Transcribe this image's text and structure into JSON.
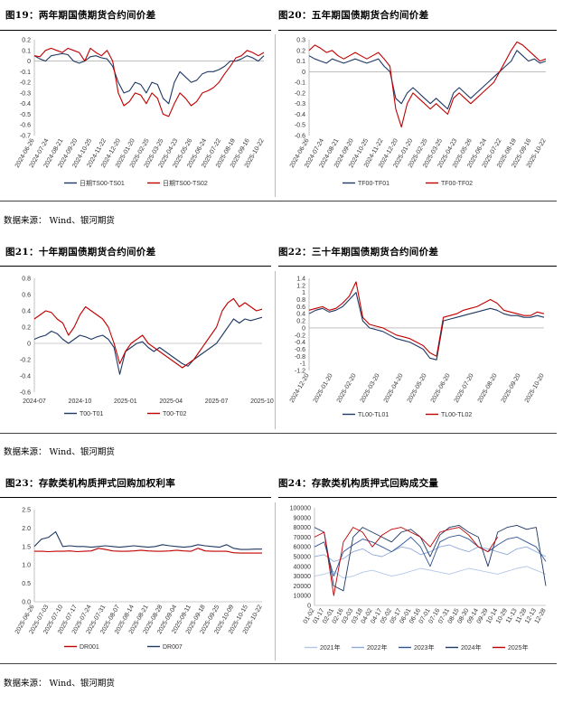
{
  "sources": [
    "数据来源： Wind、银河期货",
    "数据来源： Wind、银河期货",
    "数据来源： Wind、银河期货"
  ],
  "figures": [
    {
      "label": "图19：",
      "title": "两年期国债期货合约间价差"
    },
    {
      "label": "图20：",
      "title": "五年期国债期货合约间价差"
    },
    {
      "label": "图21：",
      "title": "十年期国债期货合约间价差"
    },
    {
      "label": "图22：",
      "title": "三十年期国债期货合约间价差"
    },
    {
      "label": "图23：",
      "title": "存款类机构质押式回购加权利率"
    },
    {
      "label": "图24：",
      "title": "存款类机构质押式回购成交量"
    }
  ],
  "colors": {
    "navy": "#1f3864",
    "red": "#c00000"
  },
  "chart_data": [
    {
      "id": "fig19",
      "type": "line",
      "ylim": [
        -0.7,
        0.2
      ],
      "yticks": [
        0.2,
        0.1,
        0.0,
        -0.1,
        -0.2,
        -0.3,
        -0.4,
        -0.5,
        -0.6,
        -0.7
      ],
      "ytick_labels": [
        "0.2",
        "0.1",
        "0",
        "-0.1",
        "-0.2",
        "-0.3",
        "-0.4",
        "-0.5",
        "-0.6",
        "-0.7"
      ],
      "xticks": [
        "2024-06-26",
        "2024-07-24",
        "2024-08-21",
        "2024-09-20",
        "2024-10-25",
        "2024-11-22",
        "2024-12-20",
        "2025-01-20",
        "2025-02-25",
        "2025-03-25",
        "2025-04-23",
        "2025-05-26",
        "2025-06-24",
        "2025-07-22",
        "2025-08-19",
        "2025-09-16",
        "2025-10-22"
      ],
      "series": [
        {
          "name": "日期TS00-TS01",
          "color": "#1f3864",
          "values": [
            0.05,
            0.02,
            0.0,
            0.05,
            0.06,
            0.07,
            0.06,
            0.0,
            -0.02,
            0.0,
            0.04,
            0.05,
            0.03,
            0.02,
            -0.05,
            -0.2,
            -0.3,
            -0.28,
            -0.2,
            -0.22,
            -0.3,
            -0.2,
            -0.22,
            -0.35,
            -0.4,
            -0.2,
            -0.1,
            -0.15,
            -0.2,
            -0.18,
            -0.12,
            -0.1,
            -0.1,
            -0.08,
            -0.05,
            0.0,
            0.0,
            0.02,
            0.05,
            0.03,
            0.0,
            0.05
          ]
        },
        {
          "name": "日期TS00-TS02",
          "color": "#c00000",
          "values": [
            0.05,
            0.04,
            0.1,
            0.12,
            0.1,
            0.08,
            0.12,
            0.1,
            0.08,
            0.0,
            0.12,
            0.08,
            0.05,
            0.1,
            0.0,
            -0.3,
            -0.42,
            -0.38,
            -0.3,
            -0.32,
            -0.4,
            -0.3,
            -0.35,
            -0.5,
            -0.52,
            -0.4,
            -0.3,
            -0.35,
            -0.42,
            -0.38,
            -0.3,
            -0.28,
            -0.25,
            -0.2,
            -0.12,
            -0.05,
            0.03,
            0.05,
            0.1,
            0.08,
            0.05,
            0.08
          ]
        }
      ]
    },
    {
      "id": "fig20",
      "type": "line",
      "ylim": [
        -0.6,
        0.3
      ],
      "yticks": [
        0.3,
        0.2,
        0.1,
        0.0,
        -0.1,
        -0.2,
        -0.3,
        -0.4,
        -0.5,
        -0.6
      ],
      "ytick_labels": [
        "0.3",
        "0.2",
        "0.1",
        "0",
        "-0.1",
        "-0.2",
        "-0.3",
        "-0.4",
        "-0.5",
        "-0.6"
      ],
      "xticks": [
        "2024-06-26",
        "2024-07-24",
        "2024-08-21",
        "2024-09-20",
        "2024-10-25",
        "2024-11-22",
        "2024-12-20",
        "2025-01-20",
        "2025-02-25",
        "2025-03-25",
        "2025-04-23",
        "2025-05-26",
        "2025-06-24",
        "2025-07-22",
        "2025-08-19",
        "2025-09-16",
        "2025-10-22"
      ],
      "series": [
        {
          "name": "TF00-TF01",
          "color": "#1f3864",
          "values": [
            0.15,
            0.12,
            0.1,
            0.08,
            0.12,
            0.1,
            0.08,
            0.1,
            0.12,
            0.1,
            0.08,
            0.1,
            0.12,
            0.05,
            0.0,
            -0.25,
            -0.3,
            -0.2,
            -0.15,
            -0.2,
            -0.25,
            -0.3,
            -0.25,
            -0.3,
            -0.35,
            -0.2,
            -0.15,
            -0.2,
            -0.25,
            -0.2,
            -0.15,
            -0.1,
            -0.05,
            0.0,
            0.05,
            0.1,
            0.2,
            0.15,
            0.1,
            0.12,
            0.08,
            0.1
          ]
        },
        {
          "name": "TF00-TF02",
          "color": "#c00000",
          "values": [
            0.2,
            0.25,
            0.22,
            0.18,
            0.2,
            0.15,
            0.12,
            0.15,
            0.18,
            0.15,
            0.12,
            0.15,
            0.18,
            0.12,
            0.05,
            -0.35,
            -0.52,
            -0.3,
            -0.2,
            -0.25,
            -0.3,
            -0.35,
            -0.3,
            -0.35,
            -0.4,
            -0.25,
            -0.2,
            -0.25,
            -0.3,
            -0.25,
            -0.2,
            -0.15,
            -0.1,
            0.0,
            0.1,
            0.2,
            0.28,
            0.25,
            0.2,
            0.15,
            0.1,
            0.12
          ]
        }
      ]
    },
    {
      "id": "fig21",
      "type": "line",
      "ylim": [
        -0.6,
        0.8
      ],
      "yticks": [
        0.8,
        0.6,
        0.4,
        0.2,
        0.0,
        -0.2,
        -0.4,
        -0.6
      ],
      "ytick_labels": [
        "0.8",
        "0.6",
        "0.4",
        "0.2",
        "0",
        "-0.2",
        "-0.4",
        "-0.6"
      ],
      "xticks": [
        "2024-07",
        "2024-10",
        "2025-01",
        "2025-04",
        "2025-07",
        "2025-10"
      ],
      "series": [
        {
          "name": "T00-T01",
          "color": "#1f3864",
          "values": [
            0.05,
            0.08,
            0.1,
            0.15,
            0.12,
            0.05,
            0.0,
            0.05,
            0.1,
            0.08,
            0.05,
            0.08,
            0.1,
            0.05,
            -0.05,
            -0.38,
            -0.1,
            -0.05,
            0.0,
            0.02,
            -0.05,
            -0.1,
            -0.05,
            -0.1,
            -0.15,
            -0.2,
            -0.25,
            -0.28,
            -0.2,
            -0.15,
            -0.1,
            -0.05,
            0.0,
            0.1,
            0.2,
            0.3,
            0.25,
            0.3,
            0.28,
            0.3,
            0.32
          ]
        },
        {
          "name": "T00-T02",
          "color": "#c00000",
          "values": [
            0.3,
            0.35,
            0.4,
            0.38,
            0.3,
            0.25,
            0.1,
            0.2,
            0.35,
            0.45,
            0.4,
            0.35,
            0.3,
            0.2,
            0.0,
            -0.25,
            -0.1,
            0.0,
            0.05,
            0.1,
            0.0,
            -0.05,
            -0.1,
            -0.15,
            -0.2,
            -0.25,
            -0.3,
            -0.25,
            -0.2,
            -0.1,
            0.0,
            0.1,
            0.2,
            0.4,
            0.5,
            0.55,
            0.45,
            0.5,
            0.45,
            0.4,
            0.42
          ]
        }
      ]
    },
    {
      "id": "fig22",
      "type": "line",
      "ylim": [
        -1.2,
        1.4
      ],
      "yticks": [
        1.4,
        1.2,
        1.0,
        0.8,
        0.6,
        0.4,
        0.2,
        0.0,
        -0.2,
        -0.4,
        -0.6,
        -0.8,
        -1.0,
        -1.2
      ],
      "ytick_labels": [
        "1.4",
        "1.2",
        "1",
        "0.8",
        "0.6",
        "0.4",
        "0.2",
        "0",
        "-0.2",
        "-0.4",
        "-0.6",
        "-0.8",
        "-1",
        "-1.2"
      ],
      "xticks": [
        "2024-12-20",
        "2025-01-20",
        "2025-02-20",
        "2025-03-20",
        "2025-04-20",
        "2025-05-20",
        "2025-06-20",
        "2025-07-20",
        "2025-08-20",
        "2025-09-20",
        "2025-10-20"
      ],
      "series": [
        {
          "name": "TL00-TL01",
          "color": "#1f3864",
          "values": [
            0.4,
            0.5,
            0.55,
            0.45,
            0.5,
            0.6,
            0.8,
            1.0,
            0.2,
            0.0,
            -0.05,
            -0.1,
            -0.2,
            -0.3,
            -0.35,
            -0.4,
            -0.5,
            -0.6,
            -0.85,
            -0.9,
            0.2,
            0.25,
            0.3,
            0.35,
            0.4,
            0.45,
            0.5,
            0.55,
            0.5,
            0.4,
            0.35,
            0.35,
            0.3,
            0.3,
            0.35,
            0.3
          ]
        },
        {
          "name": "TL00-TL02",
          "color": "#c00000",
          "values": [
            0.5,
            0.55,
            0.6,
            0.5,
            0.55,
            0.7,
            0.9,
            1.3,
            0.3,
            0.1,
            0.05,
            0.0,
            -0.1,
            -0.2,
            -0.25,
            -0.3,
            -0.4,
            -0.5,
            -0.7,
            -0.8,
            0.3,
            0.35,
            0.4,
            0.5,
            0.55,
            0.6,
            0.7,
            0.8,
            0.7,
            0.5,
            0.45,
            0.4,
            0.35,
            0.35,
            0.45,
            0.4
          ]
        }
      ]
    },
    {
      "id": "fig23",
      "type": "line",
      "ylim": [
        0.0,
        2.5
      ],
      "yticks": [
        2.5,
        2.0,
        1.5,
        1.0,
        0.5,
        0.0
      ],
      "ytick_labels": [
        "2.5",
        "2.0",
        "1.5",
        "1.0",
        "0.5",
        "0.0"
      ],
      "xticks": [
        "2025-06-26",
        "2025-07-03",
        "2025-07-10",
        "2025-07-17",
        "2025-07-24",
        "2025-07-31",
        "2025-08-07",
        "2025-08-14",
        "2025-08-21",
        "2025-08-28",
        "2025-09-04",
        "2025-09-11",
        "2025-09-18",
        "2025-09-25",
        "2025-10-09",
        "2025-10-15",
        "2025-10-22"
      ],
      "series": [
        {
          "name": "DR001",
          "color": "#c00000",
          "values": [
            1.37,
            1.37,
            1.36,
            1.37,
            1.37,
            1.38,
            1.36,
            1.37,
            1.38,
            1.45,
            1.42,
            1.38,
            1.37,
            1.37,
            1.38,
            1.4,
            1.38,
            1.37,
            1.37,
            1.38,
            1.4,
            1.38,
            1.37,
            1.45,
            1.38,
            1.37,
            1.37,
            1.37,
            1.33,
            1.32,
            1.32,
            1.32,
            1.32
          ]
        },
        {
          "name": "DR007",
          "color": "#1f3864",
          "values": [
            1.5,
            1.7,
            1.75,
            1.9,
            1.5,
            1.52,
            1.5,
            1.5,
            1.48,
            1.5,
            1.52,
            1.5,
            1.48,
            1.5,
            1.52,
            1.5,
            1.48,
            1.5,
            1.55,
            1.52,
            1.5,
            1.48,
            1.5,
            1.55,
            1.52,
            1.5,
            1.48,
            1.55,
            1.45,
            1.42,
            1.42,
            1.43,
            1.43
          ]
        }
      ]
    },
    {
      "id": "fig24",
      "type": "line",
      "ylim": [
        0,
        100000
      ],
      "yticks": [
        100000,
        90000,
        80000,
        70000,
        60000,
        50000,
        40000,
        30000,
        20000,
        10000,
        0
      ],
      "ytick_labels": [
        "100000",
        "90000",
        "80000",
        "70000",
        "60000",
        "50000",
        "40000",
        "30000",
        "20000",
        "10000",
        "0"
      ],
      "xticks": [
        "01-02",
        "01-17",
        "02-01",
        "02-16",
        "03-03",
        "03-18",
        "04-02",
        "04-17",
        "05-02",
        "05-17",
        "06-01",
        "06-16",
        "07-01",
        "07-16",
        "07-31",
        "08-15",
        "08-30",
        "09-14",
        "09-29",
        "10-14",
        "10-29",
        "11-13",
        "11-28",
        "12-13",
        "12-28"
      ],
      "series": [
        {
          "name": "2021年",
          "color": "#b4c7e7",
          "values": [
            30000,
            32000,
            35000,
            28000,
            30000,
            34000,
            36000,
            33000,
            30000,
            32000,
            35000,
            38000,
            36000,
            34000,
            32000,
            35000,
            38000,
            36000,
            34000,
            32000,
            35000,
            38000,
            40000,
            36000,
            32000
          ]
        },
        {
          "name": "2022年",
          "color": "#8faadc",
          "values": [
            50000,
            52000,
            45000,
            48000,
            55000,
            58000,
            52000,
            50000,
            55000,
            60000,
            58000,
            52000,
            55000,
            60000,
            62000,
            58000,
            55000,
            60000,
            58000,
            55000,
            52000,
            58000,
            60000,
            55000,
            50000
          ]
        },
        {
          "name": "2023年",
          "color": "#2f5597",
          "values": [
            60000,
            65000,
            30000,
            55000,
            62000,
            68000,
            65000,
            60000,
            55000,
            62000,
            70000,
            60000,
            40000,
            65000,
            70000,
            72000,
            68000,
            60000,
            55000,
            62000,
            68000,
            70000,
            65000,
            60000,
            45000
          ]
        },
        {
          "name": "2024年",
          "color": "#1f3864",
          "values": [
            80000,
            75000,
            20000,
            15000,
            70000,
            80000,
            75000,
            70000,
            65000,
            75000,
            78000,
            70000,
            50000,
            72000,
            80000,
            82000,
            75000,
            70000,
            40000,
            75000,
            80000,
            82000,
            78000,
            80000,
            20000
          ]
        },
        {
          "name": "2025年",
          "color": "#c00000",
          "values": [
            70000,
            75000,
            10000,
            65000,
            80000,
            75000,
            60000,
            72000,
            78000,
            80000,
            75000,
            70000,
            60000,
            75000,
            78000,
            80000,
            72000,
            60000,
            55000,
            70000,
            null,
            null,
            null,
            null,
            null
          ]
        }
      ]
    }
  ]
}
